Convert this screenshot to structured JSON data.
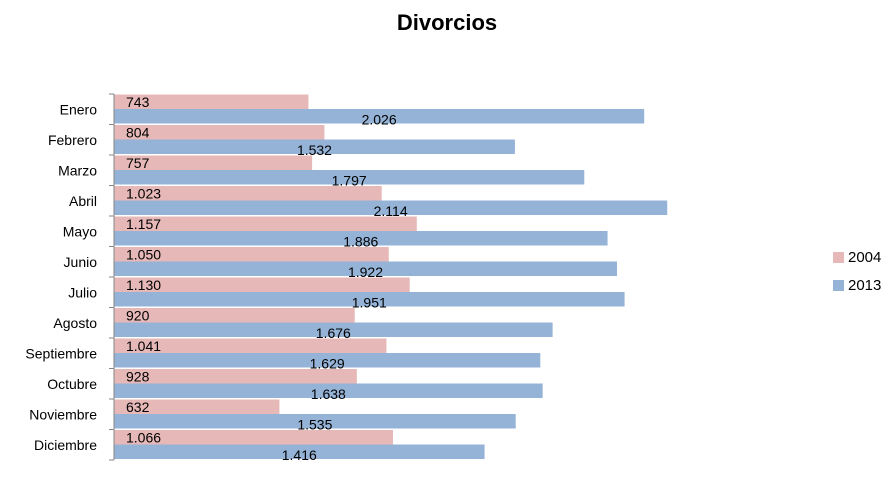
{
  "chart_data": {
    "type": "bar",
    "orientation": "horizontal",
    "title": "Divorcios",
    "categories": [
      "Enero",
      "Febrero",
      "Marzo",
      "Abril",
      "Mayo",
      "Junio",
      "Julio",
      "Agosto",
      "Septiembre",
      "Octubre",
      "Noviembre",
      "Diciembre"
    ],
    "series": [
      {
        "name": "2004",
        "color": "#E6B9B8",
        "values": [
          743,
          804,
          757,
          1023,
          1157,
          1050,
          1130,
          920,
          1041,
          928,
          632,
          1066
        ],
        "labels": [
          "743",
          "804",
          "757",
          "1.023",
          "1.157",
          "1.050",
          "1.130",
          "920",
          "1.041",
          "928",
          "632",
          "1.066"
        ]
      },
      {
        "name": "2013",
        "color": "#95B3D7",
        "values": [
          2026,
          1532,
          1797,
          2114,
          1886,
          1922,
          1951,
          1676,
          1629,
          1638,
          1535,
          1416
        ],
        "labels": [
          "2.026",
          "1.532",
          "1.797",
          "2.114",
          "1.886",
          "1.922",
          "1.951",
          "1.676",
          "1.629",
          "1.638",
          "1.535",
          "1.416"
        ]
      }
    ],
    "xlim": [
      0,
      2200
    ],
    "legend_position": "right",
    "grid": false
  }
}
